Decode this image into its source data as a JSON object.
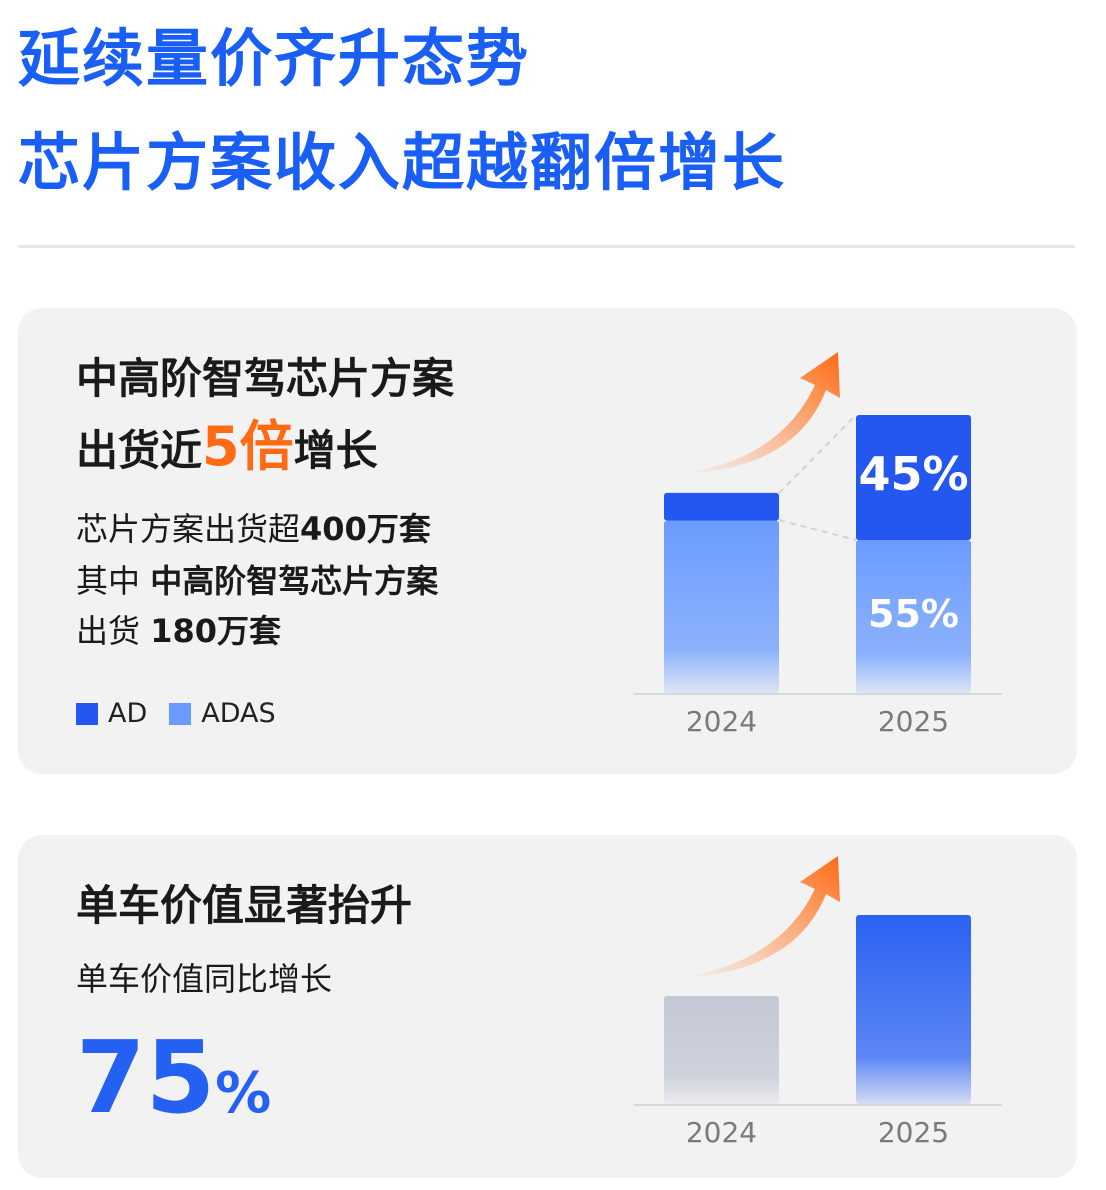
{
  "header": {
    "title_lines": [
      "延续量价齐升态势",
      "芯片方案收入超越翻倍增长"
    ]
  },
  "cards": [
    {
      "headline_lines": [
        [
          {
            "text": "中高阶智驾芯片方案",
            "accent": false
          }
        ],
        [
          {
            "text": "出货近",
            "accent": false
          },
          {
            "text": "5倍",
            "accent": true
          },
          {
            "text": "增长",
            "accent": false
          }
        ]
      ],
      "body_lines": [
        [
          {
            "text": "芯片方案出货超",
            "bold": false
          },
          {
            "text": "400万套",
            "bold": true
          }
        ],
        [
          {
            "text": "其中 ",
            "bold": false
          },
          {
            "text": "中高阶智驾芯片方案",
            "bold": true
          }
        ],
        [
          {
            "text": "出货 ",
            "bold": false
          },
          {
            "text": "180万套",
            "bold": true
          }
        ]
      ]
    },
    {
      "headline_lines": [
        [
          {
            "text": "单车价值显著抬升",
            "accent": false
          }
        ]
      ],
      "body_lines": [
        [
          {
            "text": "单车价值同比增长",
            "bold": false
          }
        ]
      ],
      "highlight": [
        "75",
        "%"
      ]
    }
  ],
  "chart_data": [
    {
      "type": "bar",
      "stacked": true,
      "categories": [
        "2024",
        "2025"
      ],
      "ylim": [
        0,
        100
      ],
      "series": [
        {
          "name": "AD",
          "color": "#2456f0",
          "values": [
            10,
            45
          ],
          "value_labels": [
            null,
            "45%"
          ]
        },
        {
          "name": "ADAS",
          "color": "#6a9cff",
          "values": [
            62,
            55
          ],
          "value_labels": [
            null,
            "55%"
          ]
        }
      ]
    },
    {
      "type": "bar",
      "stacked": false,
      "categories": [
        "2024",
        "2025"
      ],
      "ylim": [
        0,
        175
      ],
      "series": [
        {
          "values": [
            100,
            175
          ],
          "colors": [
            "#c3c8d4",
            "#2a62f3"
          ]
        }
      ]
    }
  ]
}
